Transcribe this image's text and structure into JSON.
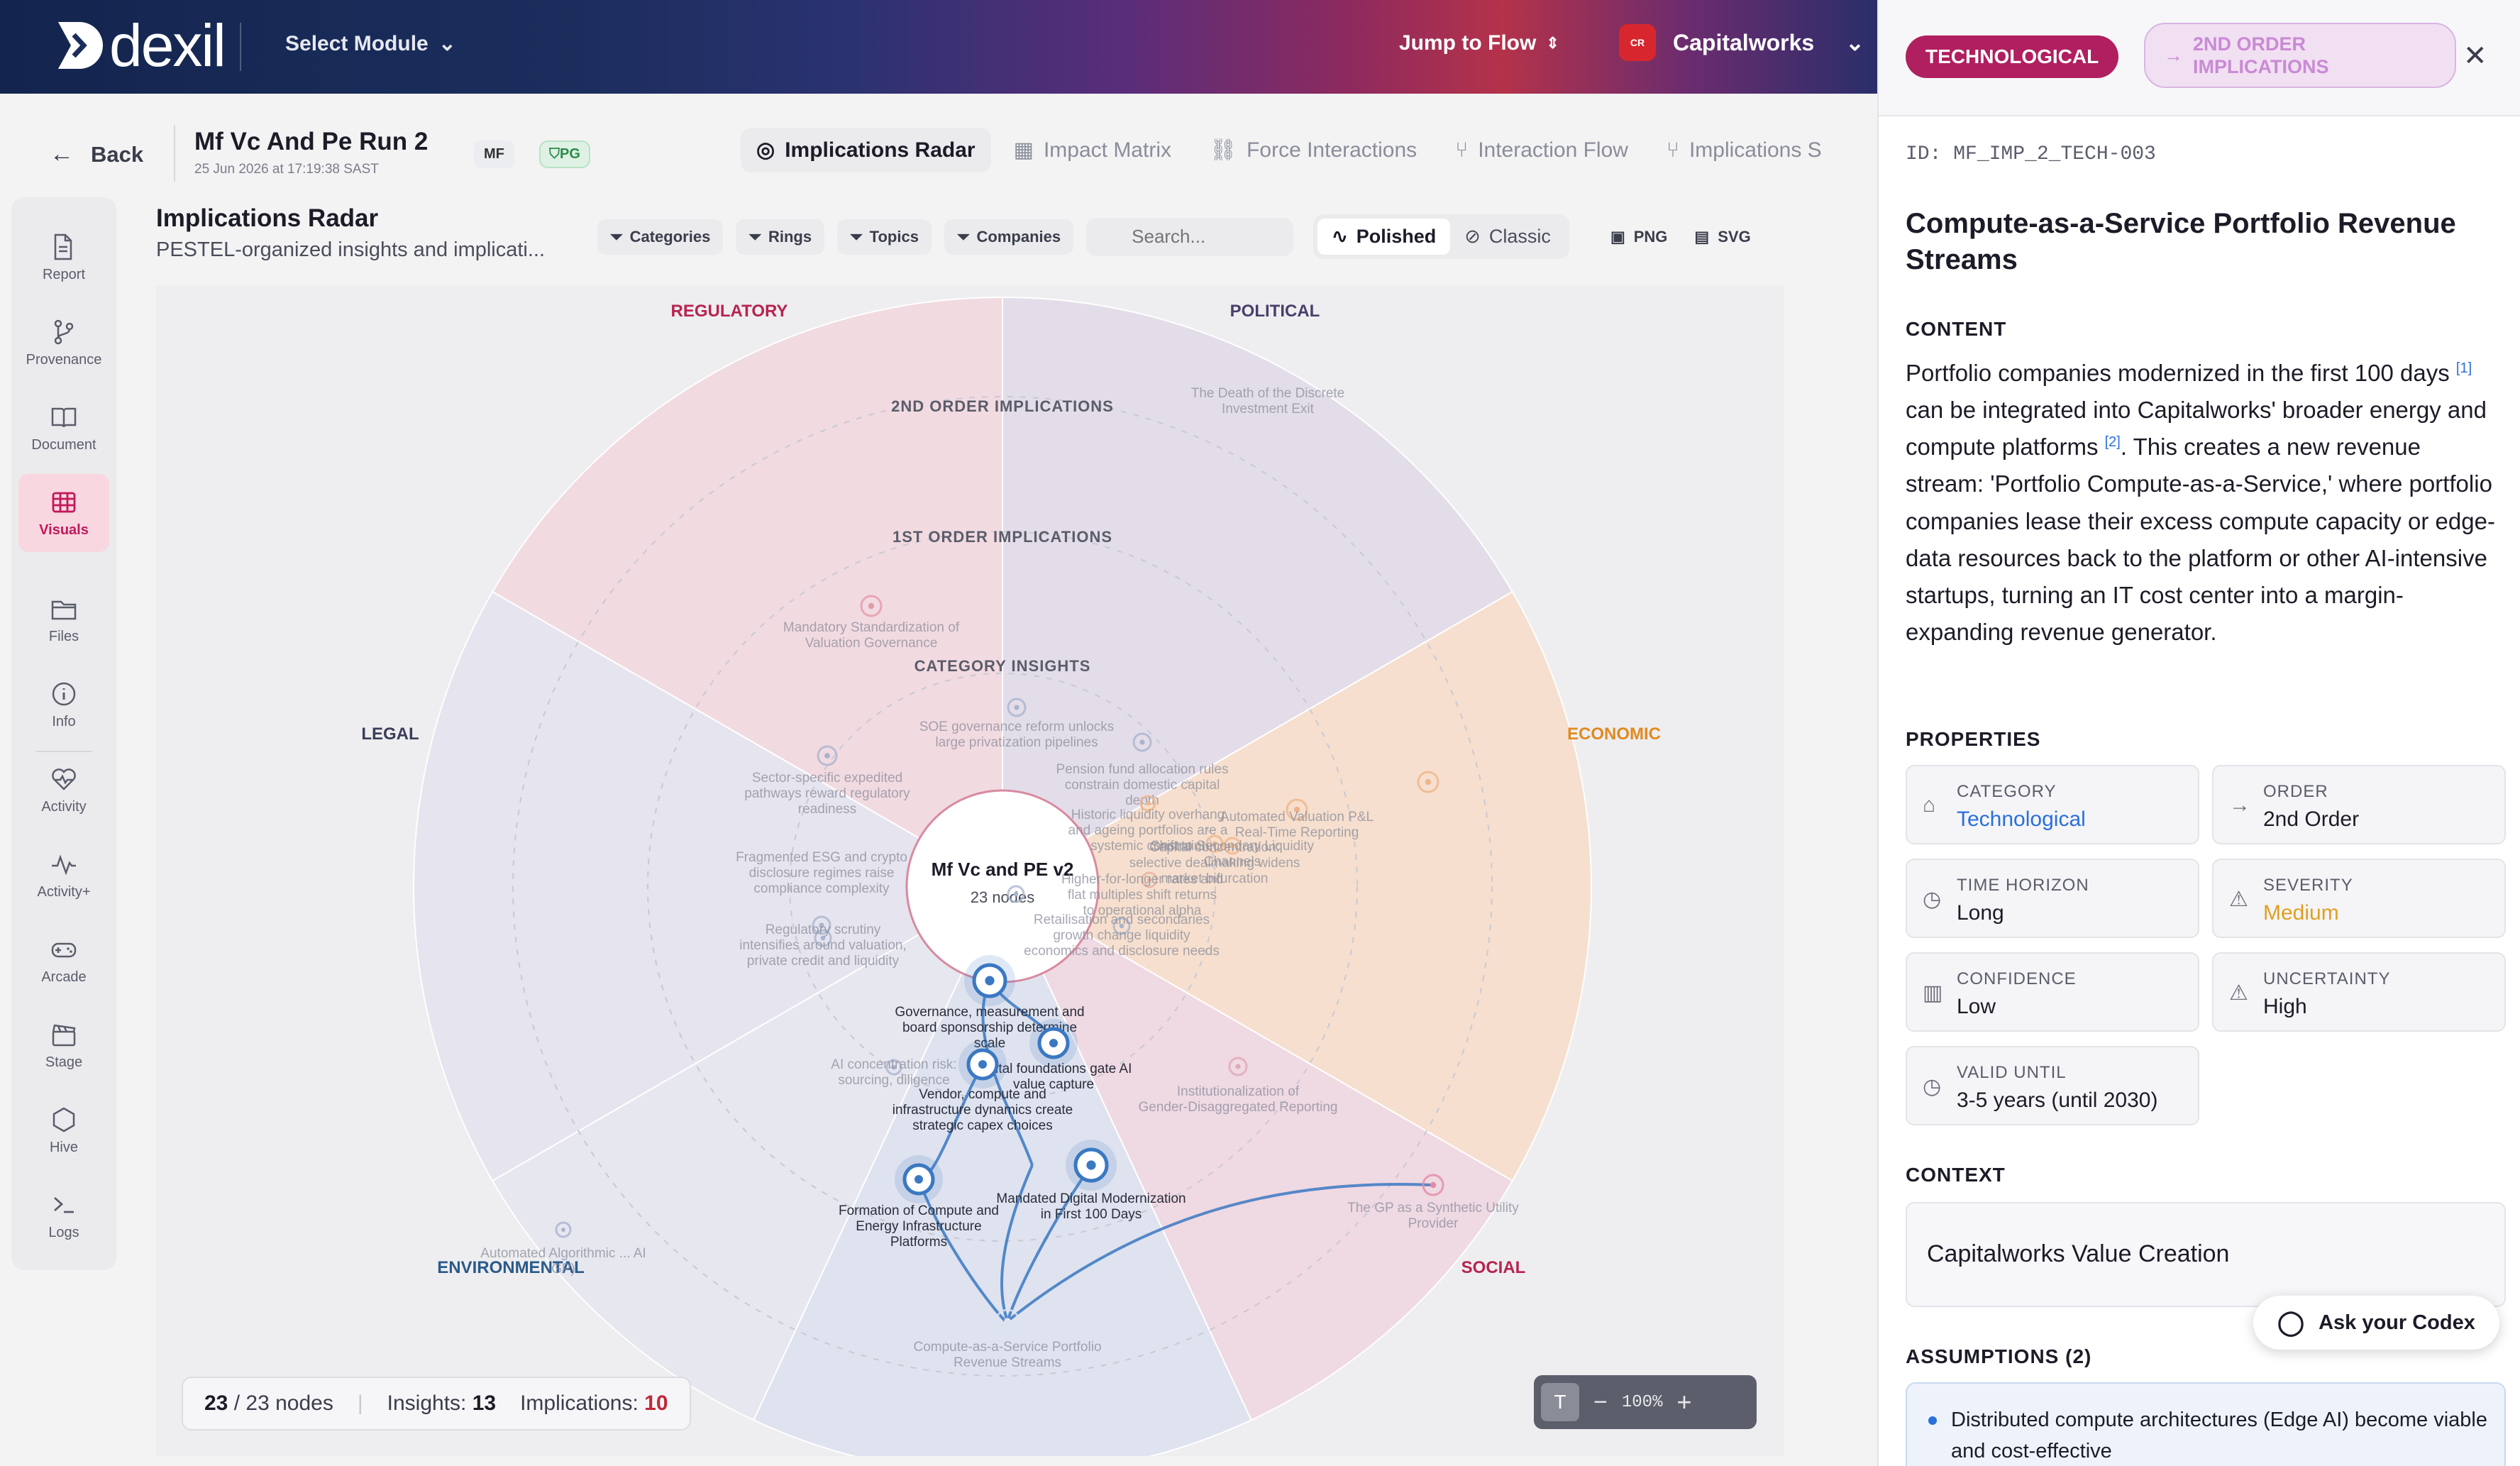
{
  "topbar": {
    "logo_text": "dexil",
    "select_module": "Select Module",
    "jump_to_flow": "Jump to Flow",
    "workspace": "Capitalworks"
  },
  "subbar": {
    "back": "Back",
    "run_title": "Mf Vc And Pe Run 2",
    "run_date": "25 Jun 2026 at 17:19:38 SAST",
    "badge_mf": "MF",
    "badge_pg": "PG",
    "tabs": [
      {
        "label": "Implications Radar",
        "icon": "radar-icon",
        "active": true
      },
      {
        "label": "Impact Matrix",
        "icon": "grid-icon",
        "active": false
      },
      {
        "label": "Force Interactions",
        "icon": "link-icon",
        "active": false
      },
      {
        "label": "Interaction Flow",
        "icon": "branch-icon",
        "active": false
      },
      {
        "label": "Implications S",
        "icon": "branch-icon",
        "active": false
      }
    ]
  },
  "nav": [
    {
      "label": "Report",
      "icon": "report-icon",
      "active": false
    },
    {
      "label": "Provenance",
      "icon": "provenance-icon",
      "active": false
    },
    {
      "label": "Document",
      "icon": "book-icon",
      "active": false
    },
    {
      "label": "Visuals",
      "icon": "table-icon",
      "active": true
    },
    {
      "label": "Files",
      "icon": "folder-icon",
      "active": false
    },
    {
      "label": "Info",
      "icon": "info-icon",
      "active": false
    },
    {
      "label": "Activity",
      "icon": "heart-pulse-icon",
      "active": false
    },
    {
      "label": "Activity+",
      "icon": "pulse-icon",
      "active": false
    },
    {
      "label": "Arcade",
      "icon": "gamepad-icon",
      "active": false
    },
    {
      "label": "Stage",
      "icon": "clapper-icon",
      "active": false
    },
    {
      "label": "Hive",
      "icon": "hexagon-icon",
      "active": false
    },
    {
      "label": "Logs",
      "icon": "terminal-icon",
      "active": false
    }
  ],
  "radar": {
    "title": "Implications Radar",
    "subtitle": "PESTEL-organized insights and implicati...",
    "filters": [
      "Categories",
      "Rings",
      "Topics",
      "Companies"
    ],
    "search_placeholder": "Search...",
    "modes": [
      "Polished",
      "Classic"
    ],
    "exports": [
      "PNG",
      "SVG"
    ],
    "center_title": "Mf Vc and PE v2",
    "center_sub": "23 nodes",
    "ring_labels": [
      "2ND ORDER IMPLICATIONS",
      "1ST ORDER IMPLICATIONS",
      "CATEGORY INSIGHTS"
    ],
    "categories": [
      {
        "name": "REGULATORY",
        "color": "#b8234f"
      },
      {
        "name": "POLITICAL",
        "color": "#4a3f6b"
      },
      {
        "name": "ECONOMIC",
        "color": "#e08a22"
      },
      {
        "name": "SOCIAL",
        "color": "#b8234f"
      },
      {
        "name": "ENVIRONMENTAL",
        "color": "#2a5a8a"
      },
      {
        "name": "LEGAL",
        "color": "#3a3d5a"
      }
    ],
    "node_labels": [
      "The Death of the Discrete Investment Exit",
      "Mandatory Standardization of Valuation Governance",
      "SOE governance reform unlocks large privatization pipelines",
      "Sector-specific expedited pathways reward regulatory readiness",
      "Pension fund allocation rules constrain domestic capital depth",
      "Automated Valuation P&L Real-Time Reporting",
      "Historic liquidity overhang and ageing portfolios are a systemic constraint",
      "Capital concentration: selective dealmaking widens market bifurcation",
      "Shift to Secondary Liquidity Channels",
      "Higher-for-longer rates and flat multiples shift returns to operational alpha",
      "Fragmented ESG and crypto disclosure regimes raise compliance complexity",
      "Regulatory scrutiny intensifies around valuation, private credit and liquidity",
      "Retailisation and secondaries growth change liquidity economics and disclosure needs",
      "Governance, measurement and board sponsorship determine scale",
      "Digital foundations gate AI value capture",
      "AI concentration risk: sourcing, diligence",
      "Vendor, compute and infrastructure dynamics create strategic capex choices",
      "Institutionalization of Gender-Disaggregated Reporting",
      "Formation of Compute and Energy Infrastructure Platforms",
      "Mandated Digital Modernization in First 100 Days",
      "The GP as a Synthetic Utility Provider",
      "Automated Algorithmic ... AI GP)",
      "Compute-as-a-Service Portfolio Revenue Streams"
    ],
    "stats": {
      "shown": "23",
      "total": "/ 23 nodes",
      "insights_label": "Insights:",
      "insights": "13",
      "implications_label": "Implications:",
      "implications": "10"
    },
    "zoom": "100%"
  },
  "panel": {
    "category_pill": "TECHNOLOGICAL",
    "order_pill": "2ND ORDER IMPLICATIONS",
    "id": "ID: MF_IMP_2_TECH-003",
    "title": "Compute-as-a-Service Portfolio Revenue Streams",
    "content_heading": "CONTENT",
    "content_p1": "Portfolio companies modernized in the first 100 days",
    "content_ref1": "[1]",
    "content_p2": " can be integrated into Capitalworks' broader energy and compute platforms ",
    "content_ref2": "[2]",
    "content_p3": ". This creates a new revenue stream: 'Portfolio Compute-as-a-Service,' where portfolio companies lease their excess compute capacity or edge-data resources back to the platform or other AI-intensive startups, turning an IT cost center into a margin-expanding revenue generator.",
    "properties_heading": "PROPERTIES",
    "properties": [
      {
        "label": "CATEGORY",
        "value": "Technological",
        "color": "#2a6fdb",
        "icon": "tag-icon"
      },
      {
        "label": "ORDER",
        "value": "2nd Order",
        "color": "#1c1c28",
        "icon": "arrow-right-icon"
      },
      {
        "label": "TIME HORIZON",
        "value": "Long",
        "color": "#1c1c28",
        "icon": "clock-icon"
      },
      {
        "label": "SEVERITY",
        "value": "Medium",
        "color": "#e0a020",
        "icon": "warning-icon"
      },
      {
        "label": "CONFIDENCE",
        "value": "Low",
        "color": "#1c1c28",
        "icon": "bar-chart-icon"
      },
      {
        "label": "UNCERTAINTY",
        "value": "High",
        "color": "#1c1c28",
        "icon": "warning-icon"
      },
      {
        "label": "VALID UNTIL",
        "value": "3-5 years (until 2030)",
        "color": "#1c1c28",
        "icon": "clock-icon"
      }
    ],
    "context_heading": "CONTEXT",
    "context_value": "Capitalworks Value Creation",
    "codex_button": "Ask your Codex",
    "assumptions_heading": "ASSUMPTIONS (2)",
    "assumption_1": "Distributed compute architectures (Edge AI) become viable and cost-effective"
  }
}
